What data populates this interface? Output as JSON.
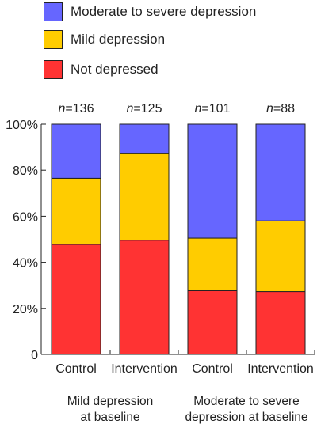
{
  "chart_data": {
    "type": "bar",
    "stacked": true,
    "categories": [
      "Control",
      "Intervention",
      "Control",
      "Intervention"
    ],
    "n_labels": [
      "n=136",
      "n=125",
      "n=101",
      "n=88"
    ],
    "group_labels": [
      {
        "lines": [
          "Mild depression",
          "at baseline"
        ]
      },
      {
        "lines": [
          "Moderate to severe",
          "depression at baseline"
        ]
      }
    ],
    "ylim": [
      0,
      100
    ],
    "yticks": [
      "0",
      "20%",
      "40%",
      "60%",
      "80%",
      "100%"
    ],
    "ytick_values": [
      0,
      20,
      40,
      60,
      80,
      100
    ],
    "legend_position": "top",
    "series": [
      {
        "name": "Not depressed",
        "color": "#ff3333",
        "values": [
          47.8,
          49.6,
          27.7,
          27.3
        ]
      },
      {
        "name": "Mild depression",
        "color": "#ffcc00",
        "values": [
          28.7,
          37.6,
          22.8,
          30.7
        ]
      },
      {
        "name": "Moderate to severe depression",
        "color": "#6666ff",
        "values": [
          23.5,
          12.8,
          49.5,
          42.0
        ]
      }
    ],
    "legend_order": [
      "Moderate to severe depression",
      "Mild depression",
      "Not depressed"
    ]
  }
}
